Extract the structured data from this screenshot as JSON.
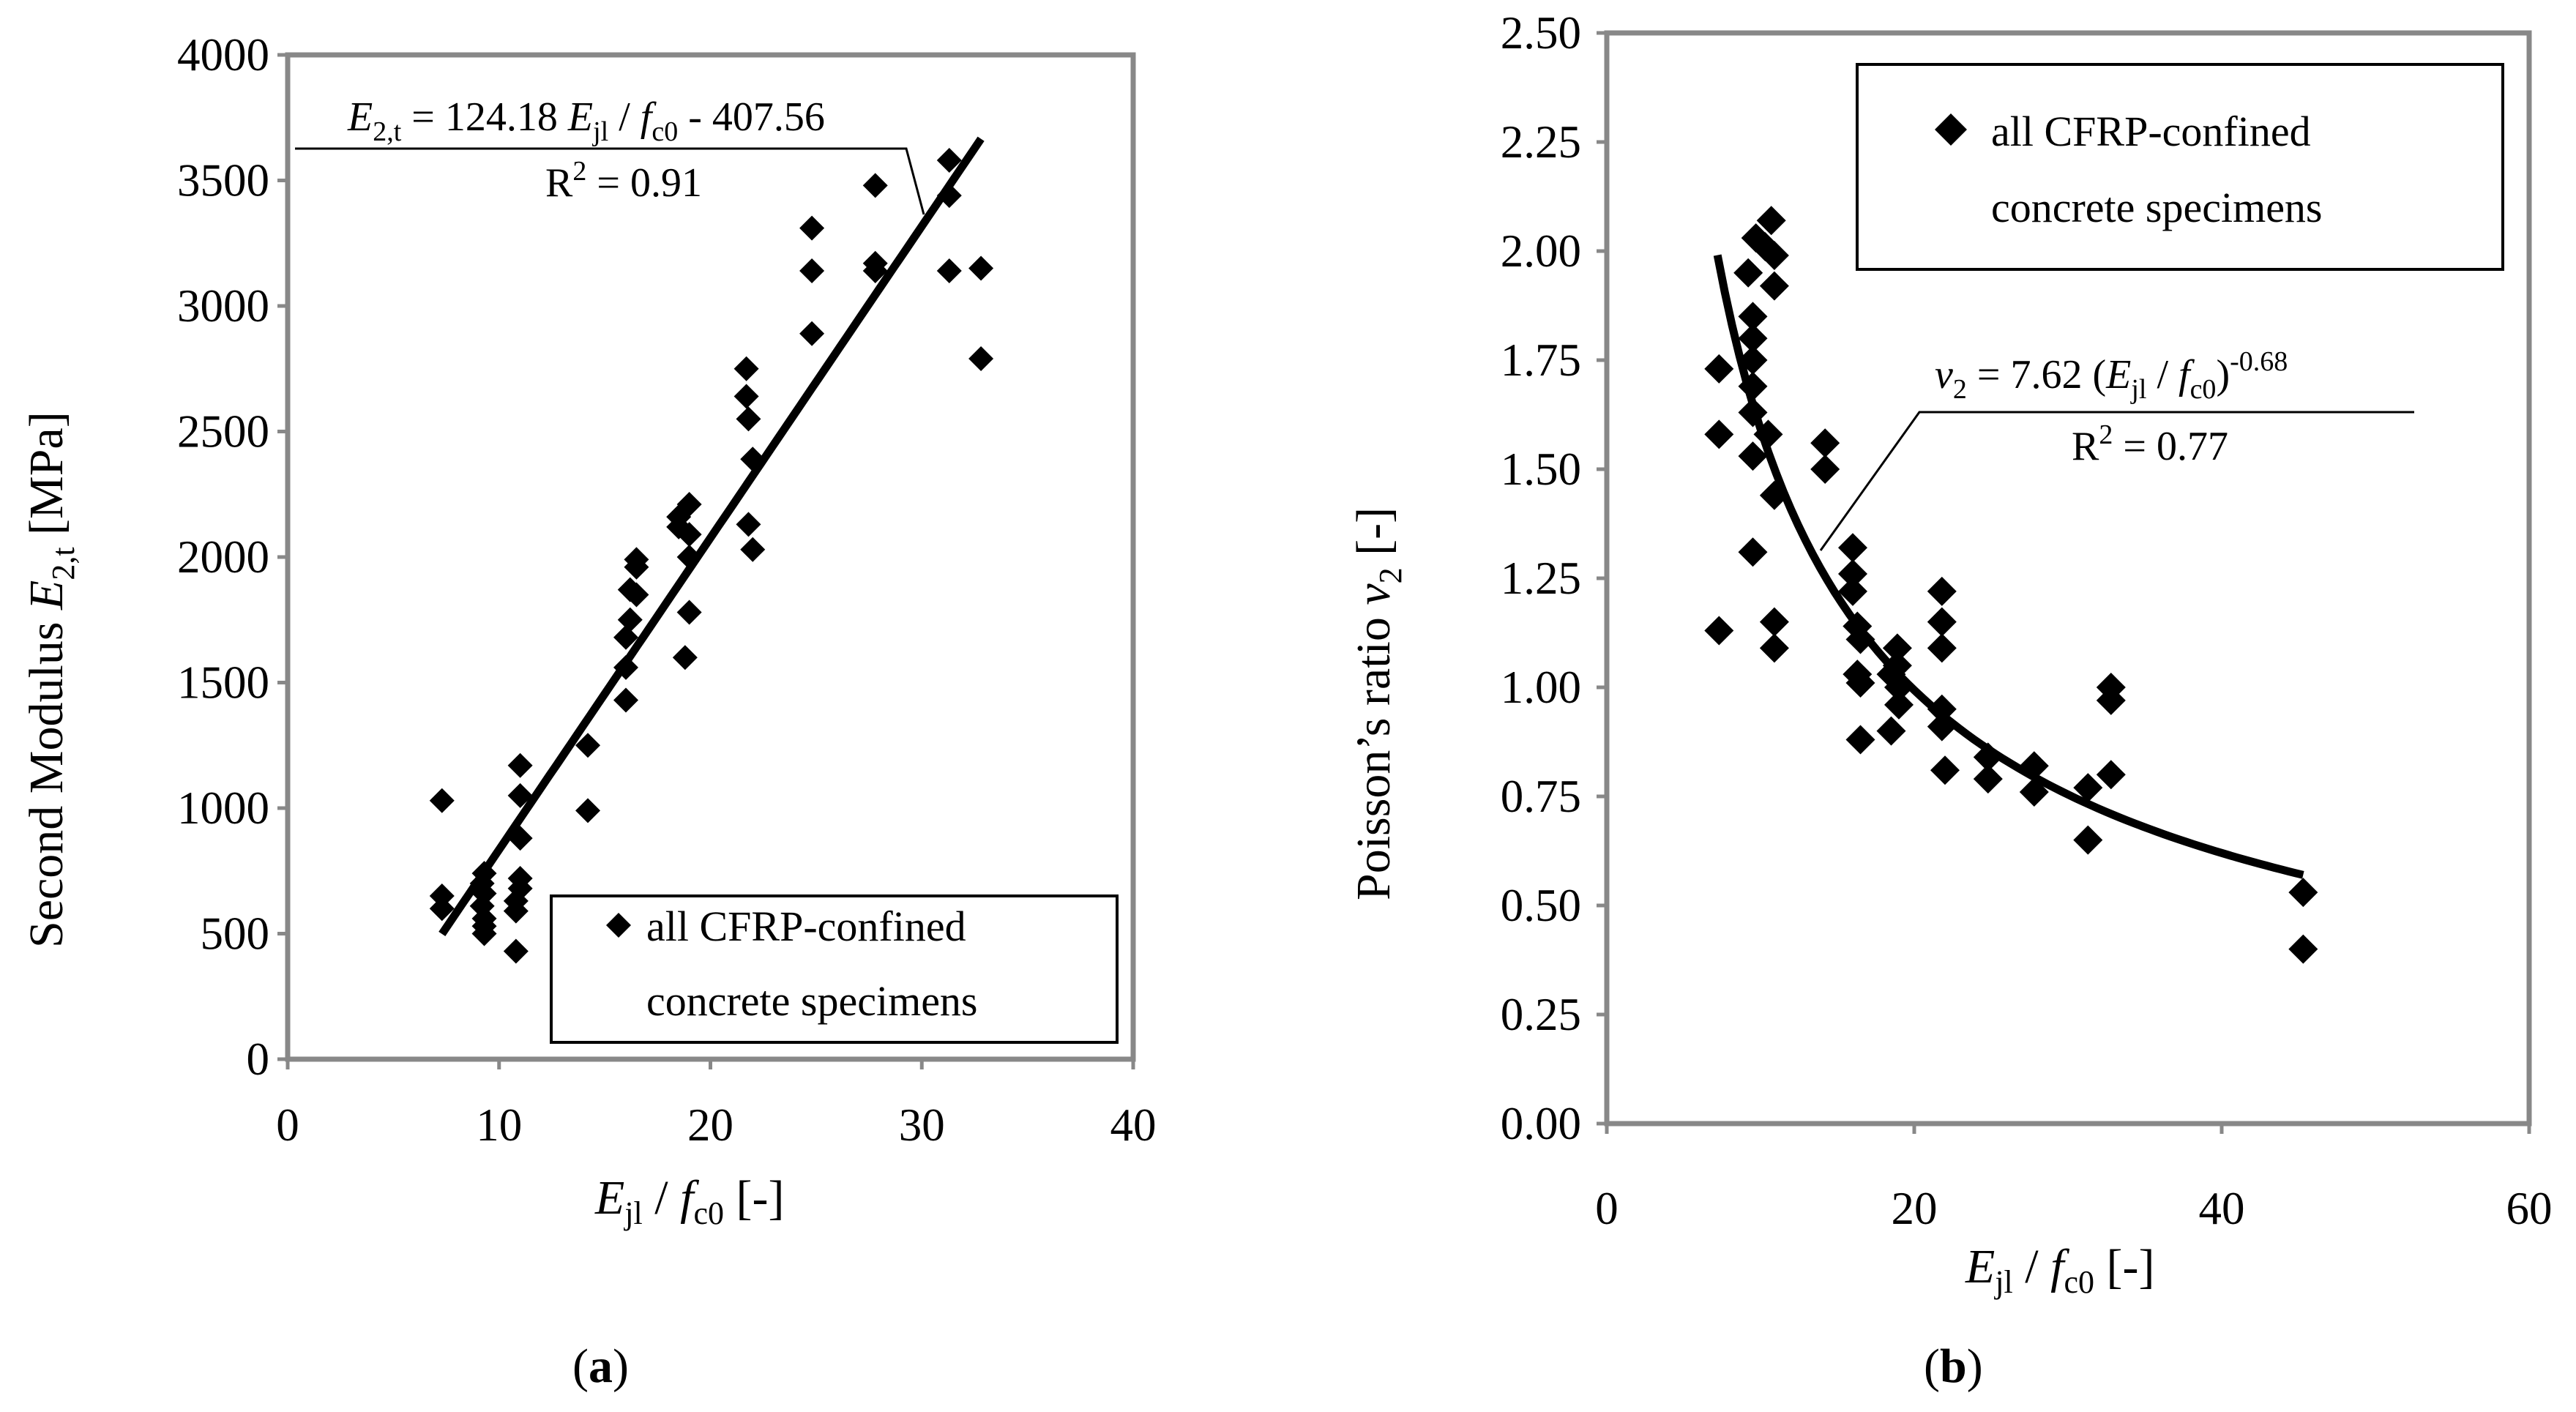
{
  "chart_data": [
    {
      "id": "a",
      "type": "scatter",
      "caption": "a",
      "xlabel": {
        "main": "E",
        "sub1": "jl",
        "slash": " / ",
        "f": "f",
        "sub2": "c0",
        "unit": " [-]"
      },
      "ylabel": {
        "prefix": "Second Modulus  ",
        "main": "E",
        "sub": "2,t",
        "unit": " [MPa]"
      },
      "xlim": [
        0,
        40
      ],
      "ylim": [
        0,
        4000
      ],
      "xticks": [
        "0",
        "10",
        "20",
        "30",
        "40"
      ],
      "yticks": [
        "0",
        "500",
        "1000",
        "1500",
        "2000",
        "2500",
        "3000",
        "3500",
        "4000"
      ],
      "legend": {
        "marker": "diamond",
        "line1": "all CFRP-confined",
        "line2": "concrete specimens",
        "position": "bottom-right"
      },
      "fit": {
        "type": "linear",
        "slope": 124.18,
        "intercept": -407.56,
        "x_range": [
          7.3,
          32.8
        ]
      },
      "equation": {
        "lhs": "E",
        "lhs_sub": "2,t",
        "mid": " = 124.18 ",
        "e": "E",
        "e_sub": "jl",
        "slash": " / ",
        "f": "f",
        "f_sub": "c0",
        "tail": " - 407.56",
        "r2_prefix": "R",
        "r2_sup": "2",
        "r2_value": " = 0.91"
      },
      "series": [
        {
          "name": "all CFRP-confined concrete specimens",
          "x": [
            7.3,
            7.3,
            7.3,
            9.3,
            9.2,
            9.3,
            9.2,
            9.3,
            9.3,
            9.3,
            10.8,
            10.8,
            11.0,
            11.0,
            11.0,
            11.0,
            11.0,
            10.8,
            14.2,
            14.2,
            16.0,
            16.0,
            16.0,
            16.2,
            16.2,
            16.5,
            16.5,
            16.5,
            18.5,
            18.5,
            19.0,
            19.0,
            19.0,
            19.0,
            18.8,
            21.7,
            21.7,
            21.8,
            22.0,
            21.8,
            22.0,
            24.8,
            24.8,
            24.8,
            27.8,
            27.8,
            27.8,
            31.3,
            31.3,
            31.3,
            32.8,
            32.8
          ],
          "y": [
            1030,
            650,
            600,
            740,
            700,
            660,
            610,
            560,
            530,
            500,
            430,
            590,
            680,
            720,
            880,
            1050,
            1170,
            630,
            1250,
            990,
            1430,
            1560,
            1680,
            1750,
            1870,
            1960,
            1990,
            1850,
            2160,
            2120,
            2000,
            2090,
            2210,
            1780,
            1600,
            2750,
            2640,
            2550,
            2390,
            2130,
            2030,
            3310,
            3140,
            2890,
            3480,
            3170,
            3140,
            3580,
            3440,
            3140,
            3150,
            2790
          ]
        }
      ]
    },
    {
      "id": "b",
      "type": "scatter",
      "caption": "b",
      "xlabel": {
        "main": "E",
        "sub1": "jl",
        "slash": " / ",
        "f": "f",
        "sub2": "c0",
        "unit": "  [-]"
      },
      "ylabel": {
        "prefix": "Poisson’s ratio ",
        "main": "ν",
        "sub": "2",
        "unit": " [-]"
      },
      "xlim": [
        0,
        60
      ],
      "ylim": [
        0,
        2.5
      ],
      "xticks": [
        "0",
        "20",
        "40",
        "60"
      ],
      "yticks": [
        "0.00",
        "0.25",
        "0.50",
        "0.75",
        "1.00",
        "1.25",
        "1.50",
        "1.75",
        "2.00",
        "2.25",
        "2.50"
      ],
      "legend": {
        "marker": "diamond",
        "line1": "all CFRP-confined",
        "line2": "concrete specimens",
        "position": "top-right"
      },
      "fit": {
        "type": "power",
        "coef": 7.62,
        "exp": -0.68,
        "x_range": [
          7.2,
          45.3
        ]
      },
      "equation": {
        "lhs": "ν",
        "lhs_sub": "2",
        "mid": " = 7.62 (",
        "e": "E",
        "e_sub": "jl",
        "slash": " / ",
        "f": "f",
        "f_sub": "c0",
        "tail": ")",
        "sup": "-0.68",
        "r2_prefix": "R",
        "r2_sup": "2",
        "r2_value": " = 0.77"
      },
      "series": [
        {
          "name": "all CFRP-confined concrete specimens",
          "x": [
            7.3,
            7.3,
            7.3,
            9.2,
            9.5,
            9.5,
            9.5,
            9.5,
            9.5,
            9.5,
            9.5,
            9.7,
            10.3,
            10.5,
            10.7,
            10.9,
            10.9,
            10.9,
            10.9,
            10.9,
            14.2,
            14.2,
            16.0,
            16.0,
            16.0,
            16.3,
            16.3,
            16.5,
            16.5,
            16.5,
            18.5,
            18.5,
            18.9,
            18.9,
            19.0,
            19.0,
            21.8,
            21.8,
            21.8,
            21.8,
            21.8,
            22.0,
            24.8,
            24.8,
            27.8,
            27.8,
            31.3,
            31.3,
            32.8,
            32.8,
            32.8,
            45.3,
            45.3
          ],
          "y": [
            1.73,
            1.58,
            1.13,
            1.95,
            1.85,
            1.8,
            1.75,
            1.69,
            1.63,
            1.53,
            1.31,
            2.03,
            2.01,
            1.58,
            2.07,
            1.99,
            1.92,
            1.44,
            1.15,
            1.09,
            1.56,
            1.5,
            1.32,
            1.26,
            1.22,
            1.14,
            1.03,
            1.11,
            1.01,
            0.88,
            1.03,
            0.9,
            1.09,
            1.05,
            1.0,
            0.96,
            1.22,
            1.15,
            1.09,
            0.95,
            0.91,
            0.81,
            0.84,
            0.79,
            0.82,
            0.76,
            0.77,
            0.65,
            1.0,
            0.97,
            0.8,
            0.53,
            0.4
          ]
        }
      ]
    }
  ]
}
